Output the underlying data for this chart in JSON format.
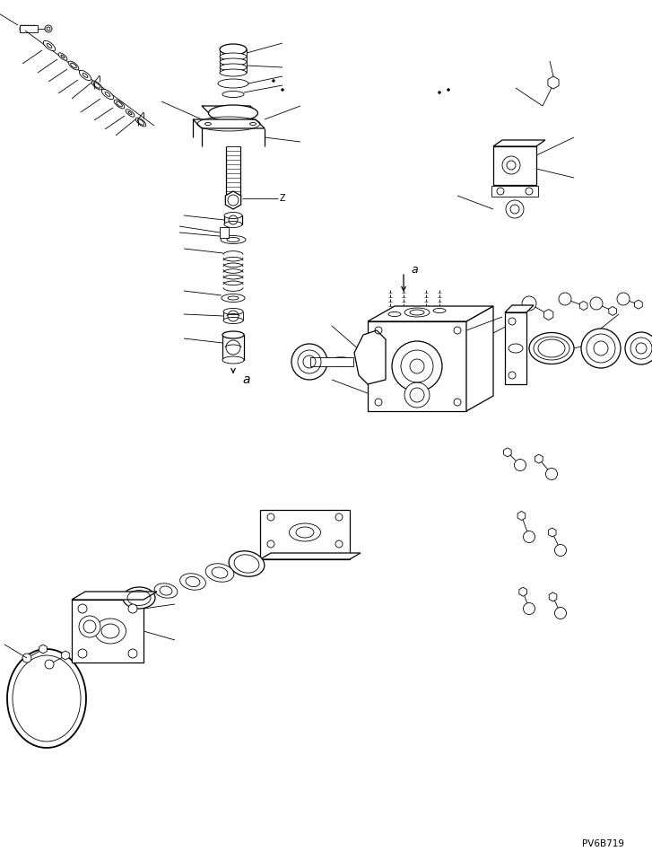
{
  "bg_color": "#ffffff",
  "line_color": "#000000",
  "part_code": "PV6B719",
  "label_a": "a",
  "figsize": [
    7.27,
    9.58
  ],
  "dpi": 100,
  "lw_thin": 0.6,
  "lw_med": 0.9,
  "lw_thick": 1.3
}
